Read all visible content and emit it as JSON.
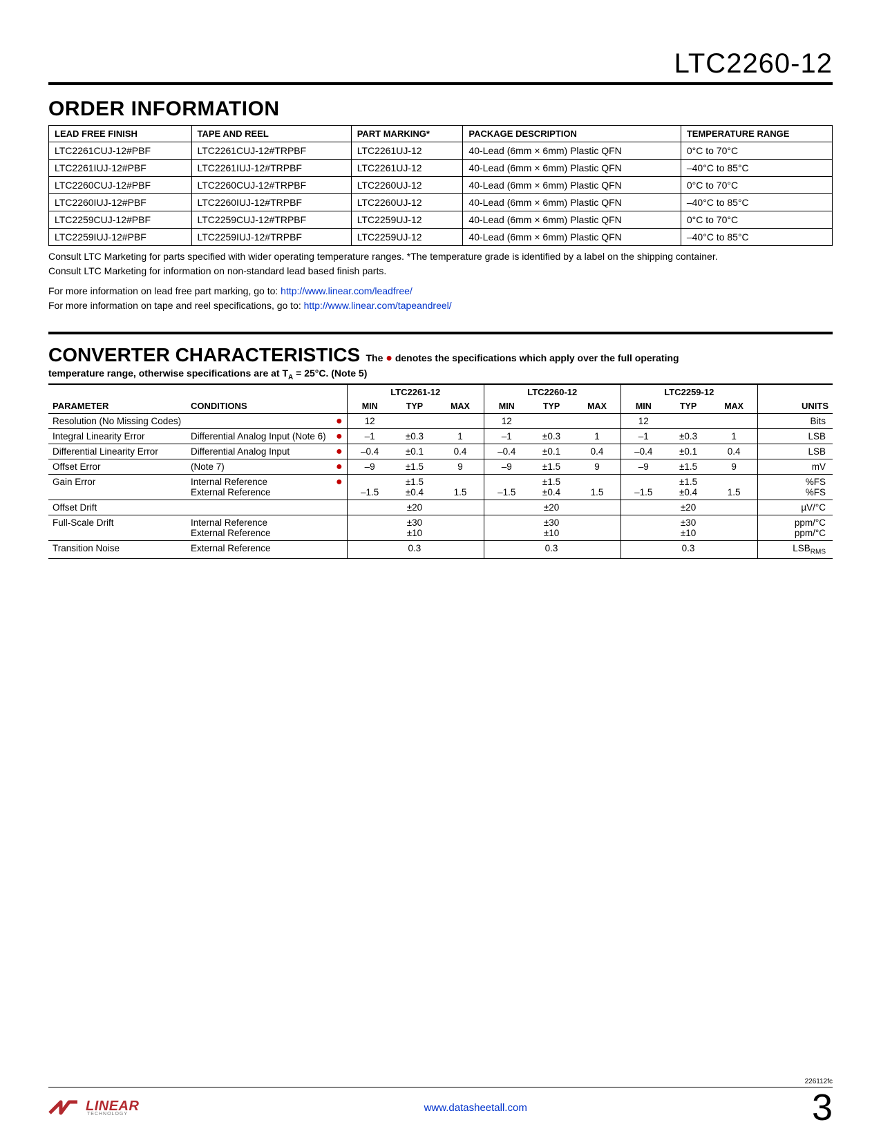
{
  "header": {
    "part_number": "LTC2260-12"
  },
  "order_info": {
    "heading": "ORDER INFORMATION",
    "columns": [
      "LEAD FREE FINISH",
      "TAPE AND REEL",
      "PART MARKING*",
      "PACKAGE DESCRIPTION",
      "TEMPERATURE RANGE"
    ],
    "rows": [
      [
        "LTC2261CUJ-12#PBF",
        "LTC2261CUJ-12#TRPBF",
        "LTC2261UJ-12",
        "40-Lead (6mm × 6mm) Plastic QFN",
        "0°C to 70°C"
      ],
      [
        "LTC2261IUJ-12#PBF",
        "LTC2261IUJ-12#TRPBF",
        "LTC2261UJ-12",
        "40-Lead (6mm × 6mm) Plastic QFN",
        "–40°C to 85°C"
      ],
      [
        "LTC2260CUJ-12#PBF",
        "LTC2260CUJ-12#TRPBF",
        "LTC2260UJ-12",
        "40-Lead (6mm × 6mm) Plastic QFN",
        "0°C to 70°C"
      ],
      [
        "LTC2260IUJ-12#PBF",
        "LTC2260IUJ-12#TRPBF",
        "LTC2260UJ-12",
        "40-Lead (6mm × 6mm) Plastic QFN",
        "–40°C to 85°C"
      ],
      [
        "LTC2259CUJ-12#PBF",
        "LTC2259CUJ-12#TRPBF",
        "LTC2259UJ-12",
        "40-Lead (6mm × 6mm) Plastic QFN",
        "0°C to 70°C"
      ],
      [
        "LTC2259IUJ-12#PBF",
        "LTC2259IUJ-12#TRPBF",
        "LTC2259UJ-12",
        "40-Lead (6mm × 6mm) Plastic QFN",
        "–40°C to 85°C"
      ]
    ],
    "notes": {
      "n1": "Consult LTC Marketing for parts specified with wider operating temperature ranges. *The temperature grade is identified by a label on the shipping container.",
      "n2": "Consult LTC Marketing for information on non-standard lead based finish parts.",
      "n3_pre": "For more information on lead free part marking, go to: ",
      "n3_link": "http://www.linear.com/leadfree/",
      "n4_pre": "For more information on tape and reel specifications, go to: ",
      "n4_link": "http://www.linear.com/tapeandreel/"
    }
  },
  "converter": {
    "heading": "CONVERTER CHARACTERISTICS",
    "sub_text_1": " The ● denotes the specifications which apply over the full operating",
    "sub_text_2_pre": "temperature range, otherwise specifications are at T",
    "sub_text_2_sub": "A",
    "sub_text_2_post": " = 25°C. (Note 5)",
    "group_headers": [
      "LTC2261-12",
      "LTC2260-12",
      "LTC2259-12"
    ],
    "col_param": "PARAMETER",
    "col_cond": "CONDITIONS",
    "col_min": "MIN",
    "col_typ": "TYP",
    "col_max": "MAX",
    "col_units": "UNITS",
    "rows": [
      {
        "p": "Resolution (No Missing Codes)",
        "c": "",
        "dot": true,
        "v": [
          [
            "12",
            "",
            ""
          ],
          [
            "12",
            "",
            ""
          ],
          [
            "12",
            "",
            ""
          ]
        ],
        "u": "Bits"
      },
      {
        "p": "Integral Linearity Error",
        "c": "Differential Analog Input (Note 6)",
        "dot": true,
        "v": [
          [
            "–1",
            "±0.3",
            "1"
          ],
          [
            "–1",
            "±0.3",
            "1"
          ],
          [
            "–1",
            "±0.3",
            "1"
          ]
        ],
        "u": "LSB"
      },
      {
        "p": "Differential Linearity Error",
        "c": "Differential Analog Input",
        "dot": true,
        "v": [
          [
            "–0.4",
            "±0.1",
            "0.4"
          ],
          [
            "–0.4",
            "±0.1",
            "0.4"
          ],
          [
            "–0.4",
            "±0.1",
            "0.4"
          ]
        ],
        "u": "LSB"
      },
      {
        "p": "Offset Error",
        "c": "(Note 7)",
        "dot": true,
        "v": [
          [
            "–9",
            "±1.5",
            "9"
          ],
          [
            "–9",
            "±1.5",
            "9"
          ],
          [
            "–9",
            "±1.5",
            "9"
          ]
        ],
        "u": "mV"
      },
      {
        "p": "Gain Error",
        "c": "Internal Reference\nExternal Reference",
        "dot": true,
        "v": [
          [
            "\n–1.5",
            "±1.5\n±0.4",
            "\n1.5"
          ],
          [
            "\n–1.5",
            "±1.5\n±0.4",
            "\n1.5"
          ],
          [
            "\n–1.5",
            "±1.5\n±0.4",
            "\n1.5"
          ]
        ],
        "u": "%FS\n%FS"
      },
      {
        "p": "Offset Drift",
        "c": "",
        "dot": false,
        "v": [
          [
            "",
            "±20",
            ""
          ],
          [
            "",
            "±20",
            ""
          ],
          [
            "",
            "±20",
            ""
          ]
        ],
        "u": "µV/°C"
      },
      {
        "p": "Full-Scale Drift",
        "c": "Internal Reference\nExternal Reference",
        "dot": false,
        "v": [
          [
            "",
            "±30\n±10",
            ""
          ],
          [
            "",
            "±30\n±10",
            ""
          ],
          [
            "",
            "±30\n±10",
            ""
          ]
        ],
        "u": "ppm/°C\nppm/°C"
      },
      {
        "p": "Transition Noise",
        "c": "External Reference",
        "dot": false,
        "v": [
          [
            "",
            "0.3",
            ""
          ],
          [
            "",
            "0.3",
            ""
          ],
          [
            "",
            "0.3",
            ""
          ]
        ],
        "u": "LSB",
        "u_sub": "RMS"
      }
    ]
  },
  "footer": {
    "doc_code": "226112fc",
    "url": "www.datasheetall.com",
    "page": "3",
    "logo_text": "LINEAR",
    "logo_sub": "TECHNOLOGY"
  },
  "colors": {
    "link": "#0033cc",
    "dot": "#c00000",
    "logo": "#b2292e"
  }
}
